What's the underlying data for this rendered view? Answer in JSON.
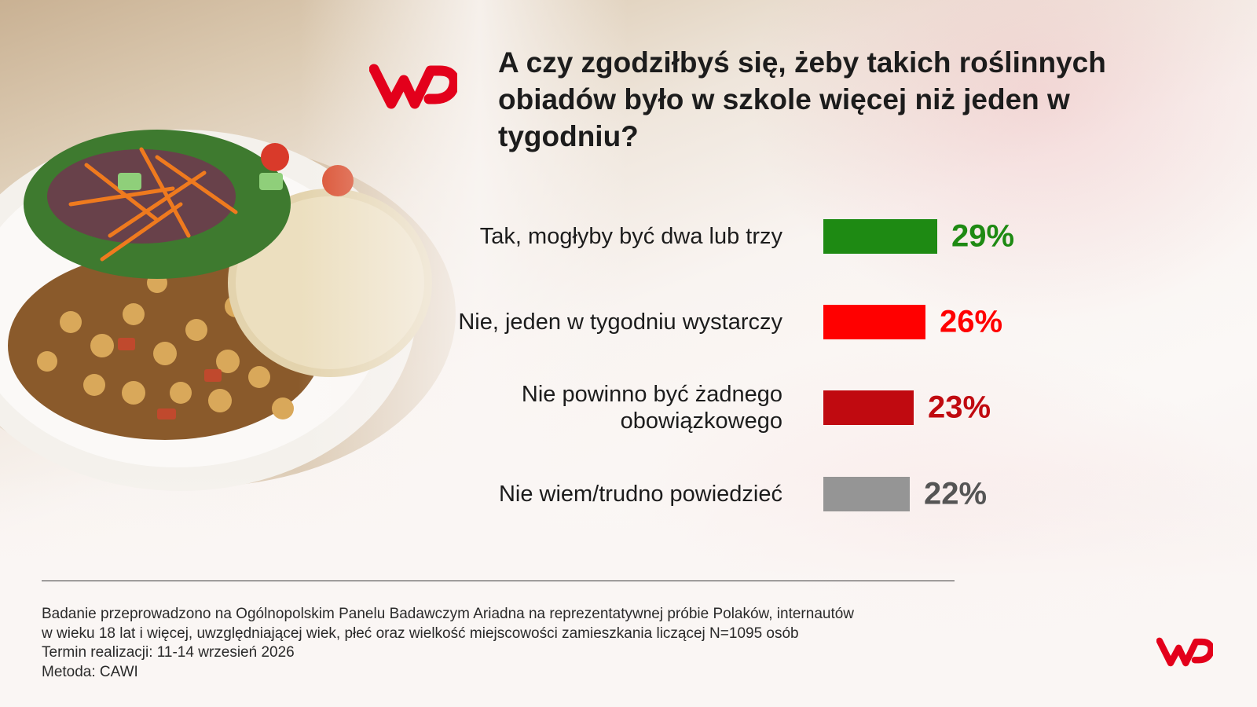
{
  "title": "A czy zgodziłbyś się, żeby takich roślinnych obiadów było w szkole więcej niż jeden w tygodniu?",
  "chart_data": {
    "type": "bar",
    "orientation": "horizontal",
    "title": "A czy zgodziłbyś się, żeby takich roślinnych obiadów było w szkole więcej niż jeden w tygodniu?",
    "categories": [
      "Tak, mogłyby być dwa lub trzy",
      "Nie, jeden w tygodniu wystarczy",
      "Nie powinno być żadnego obowiązkowego",
      "Nie wiem/trudno powiedzieć"
    ],
    "values": [
      29,
      26,
      23,
      22
    ],
    "value_labels": [
      "29%",
      "26%",
      "23%",
      "22%"
    ],
    "colors": [
      "#1e8a13",
      "#ff0000",
      "#c00a10",
      "#959595"
    ],
    "value_label_colors": [
      "#1e8a13",
      "#ff0000",
      "#c00a10",
      "#555555"
    ],
    "unit": "%",
    "xlabel": "",
    "ylabel": "",
    "grid": false,
    "legend": "none"
  },
  "footnote": {
    "lines": [
      "Badanie przeprowadzono na Ogólnopolskim Panelu Badawczym Ariadna na reprezentatywnej próbie Polaków, internautów",
      "w wieku 18 lat i więcej, uwzględniającej wiek, płeć oraz wielkość miejscowości zamieszkania liczącej N=1095 osób",
      "Termin realizacji: 11-14 wrzesień 2026",
      "Metoda: CAWI"
    ]
  },
  "brand": {
    "name": "WP",
    "logo_color": "#e3001b"
  }
}
